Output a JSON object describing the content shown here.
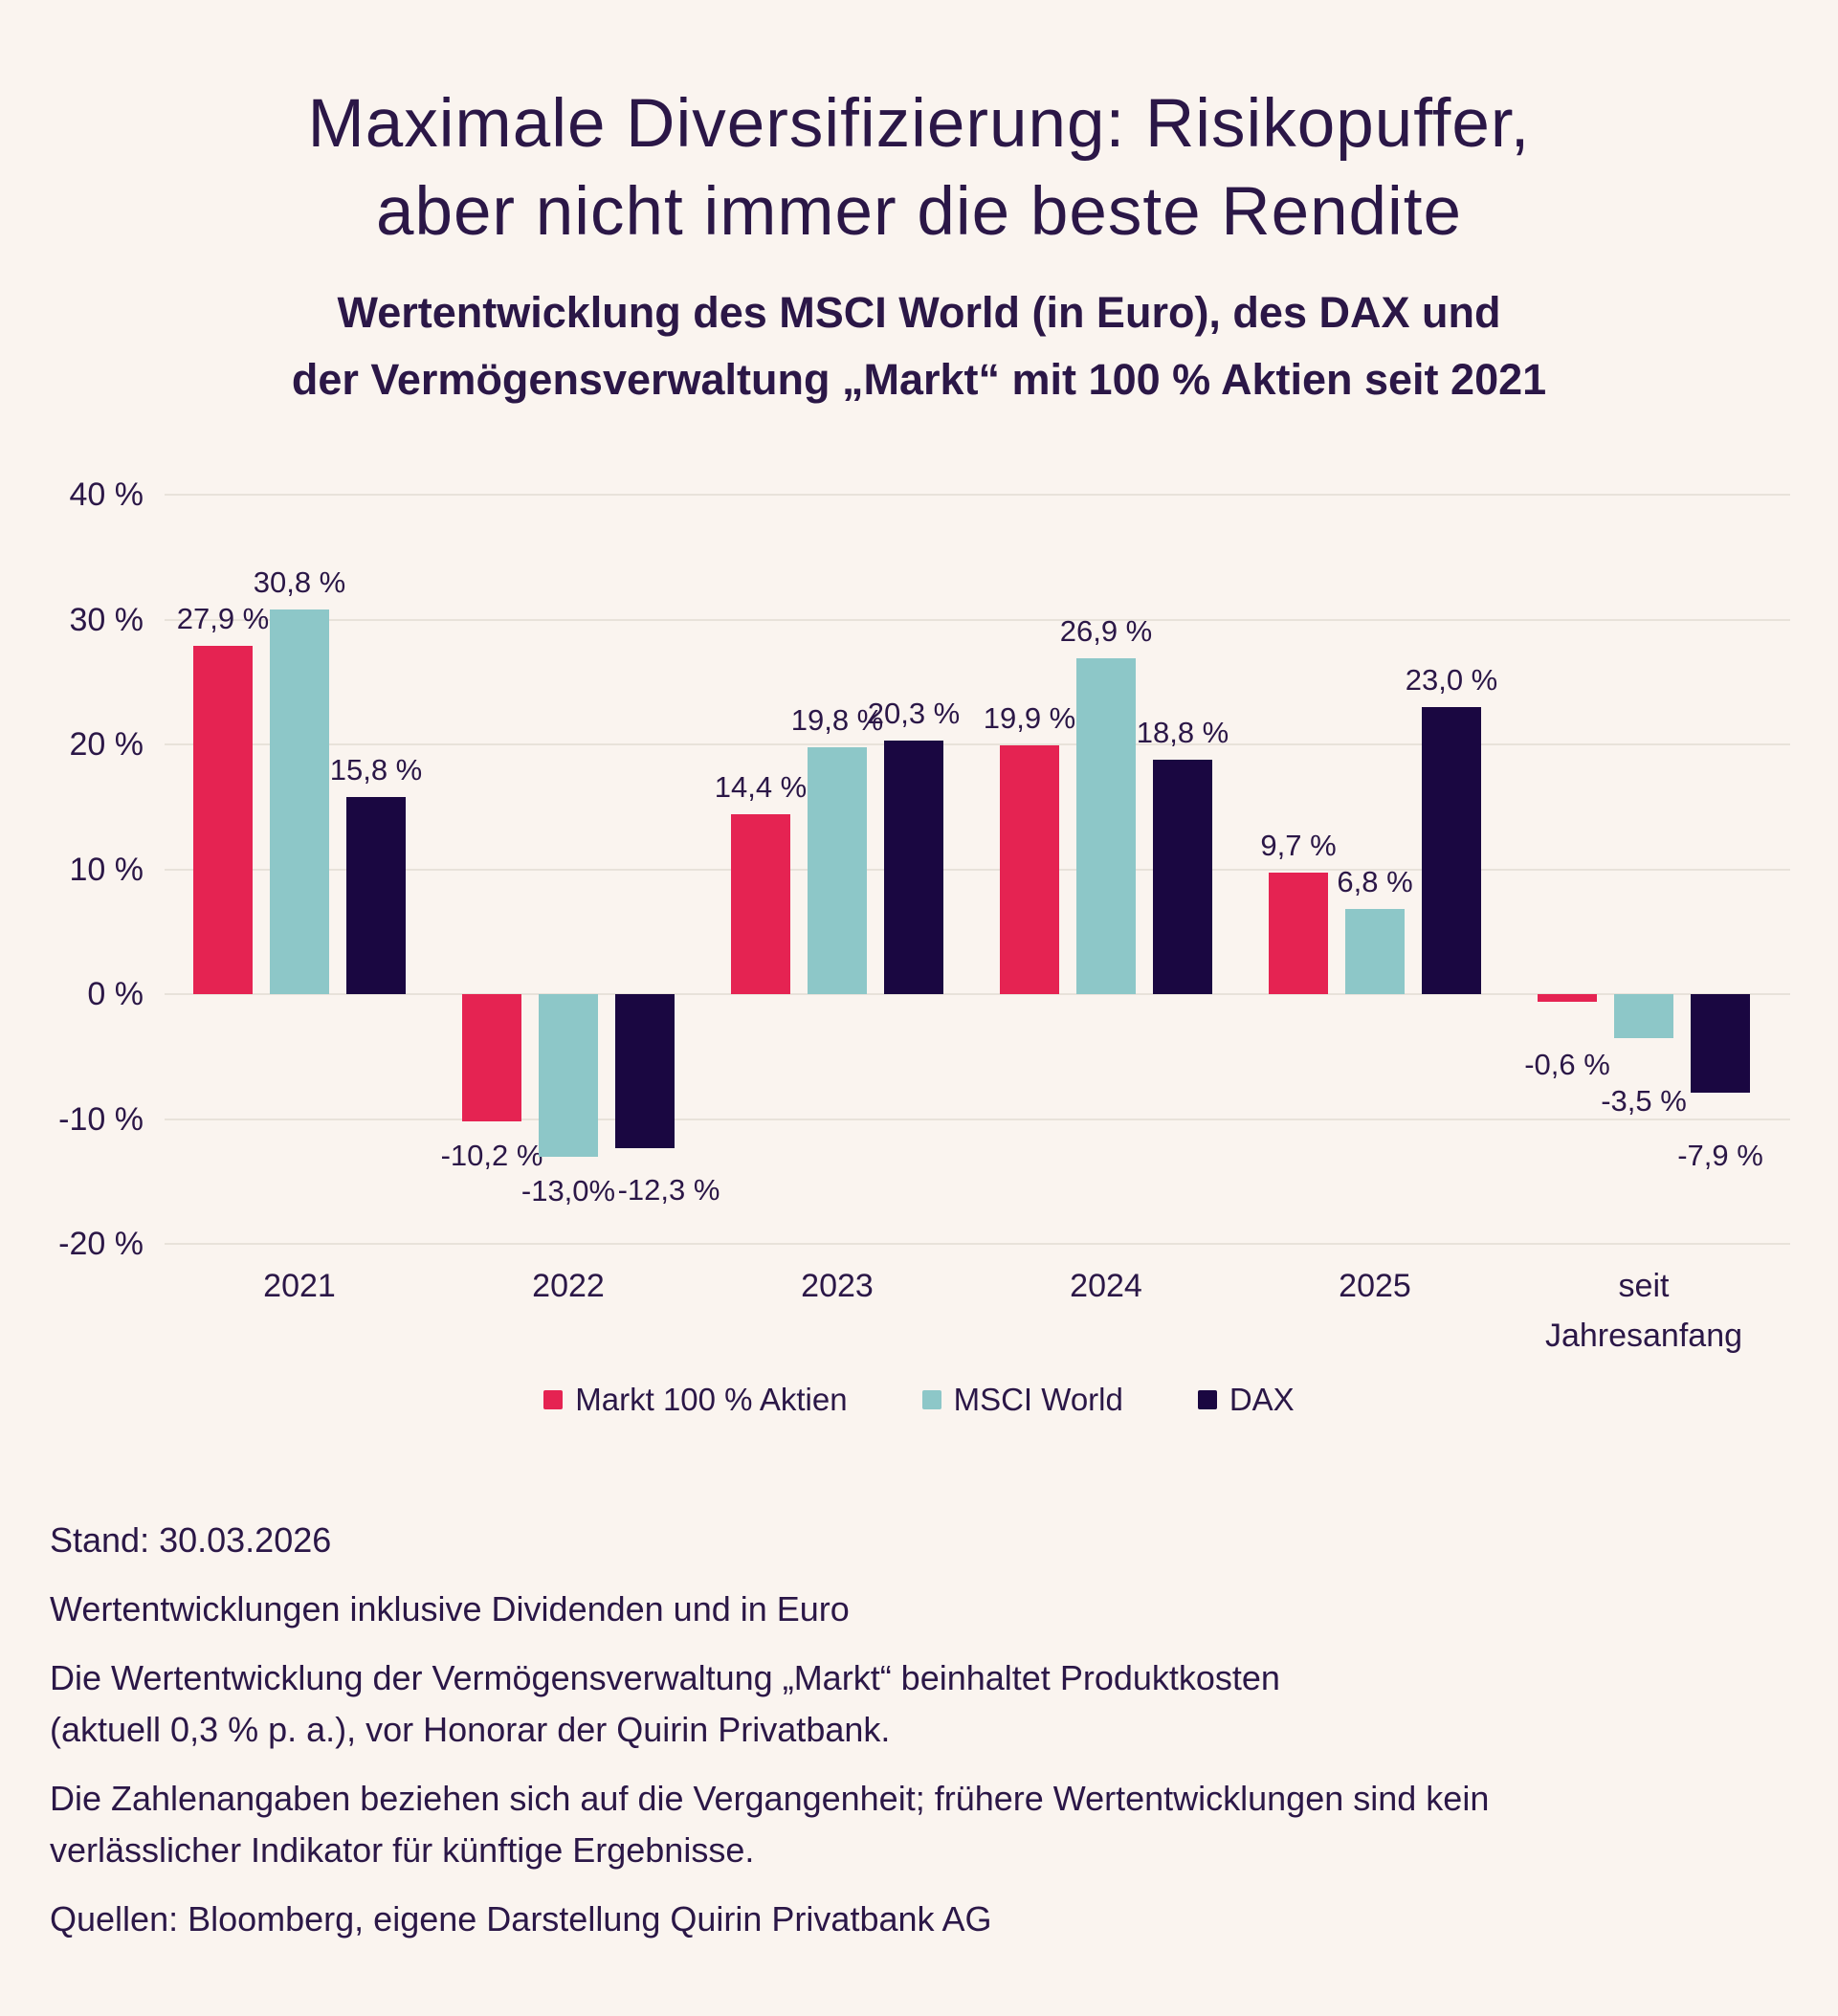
{
  "page": {
    "background": "#FAF4EF",
    "text_color": "#2B1747"
  },
  "header": {
    "title": "Maximale Diversifizierung: Risikopuffer,\naber nicht immer die beste Rendite",
    "subtitle": "Wertentwicklung des MSCI World (in Euro), des DAX und\nder Vermögensverwaltung „Markt“ mit 100 % Aktien seit 2021"
  },
  "chart_data": {
    "type": "bar",
    "title": "Maximale Diversifizierung: Risikopuffer, aber nicht immer die beste Rendite",
    "subtitle": "Wertentwicklung des MSCI World (in Euro), des DAX und der Vermögensverwaltung „Markt“ mit 100 % Aktien seit 2021",
    "categories": [
      "2021",
      "2022",
      "2023",
      "2024",
      "2025",
      "seit\nJahresanfang"
    ],
    "series": [
      {
        "name": "Markt 100 % Aktien",
        "color": "#E52352",
        "values": [
          27.9,
          -10.2,
          14.4,
          19.9,
          9.7,
          -0.6
        ],
        "labels": [
          "27,9 %",
          "-10,2 %",
          "14,4 %",
          "19,9 %",
          "9,7 %",
          "-0,6 %"
        ]
      },
      {
        "name": "MSCI World",
        "color": "#8DC7C8",
        "values": [
          30.8,
          -13.0,
          19.8,
          26.9,
          6.8,
          -3.5
        ],
        "labels": [
          "30,8 %",
          "-13,0%",
          "19,8 %",
          "26,9 %",
          "6,8 %",
          "-3,5 %"
        ]
      },
      {
        "name": "DAX",
        "color": "#1A0741",
        "values": [
          15.8,
          -12.3,
          20.3,
          18.8,
          23.0,
          -7.9
        ],
        "labels": [
          "15,8 %",
          "-12,3 %",
          "20,3 %",
          "18,8 %",
          "23,0 %",
          "-7,9 %"
        ]
      }
    ],
    "y_axis": {
      "min": -20,
      "max": 40,
      "tick_step": 10,
      "tick_labels": [
        "40 %",
        "30 %",
        "20 %",
        "10 %",
        "0 %",
        "-10 %",
        "-20 %"
      ]
    },
    "xlabel": "",
    "ylabel": "",
    "grid": true,
    "legend_position": "bottom",
    "label_adjust": {
      "1.2": [
        25,
        8
      ],
      "5.0": [
        0,
        30
      ],
      "5.1": [
        0,
        30
      ],
      "5.2": [
        0,
        30
      ]
    }
  },
  "footer": {
    "paragraphs": [
      "Stand: 30.03.2026",
      "Wertentwicklungen inklusive Dividenden und in Euro",
      "Die Wertentwicklung der Vermögensverwaltung „Markt“ beinhaltet Produktkosten\n(aktuell 0,3 % p. a.), vor Honorar der Quirin Privatbank.",
      "Die Zahlenangaben beziehen sich auf die Vergangenheit; frühere Wertentwicklungen sind kein\nverlässlicher Indikator für künftige Ergebnisse.",
      "Quellen: Bloomberg, eigene Darstellung Quirin Privatbank AG"
    ]
  }
}
